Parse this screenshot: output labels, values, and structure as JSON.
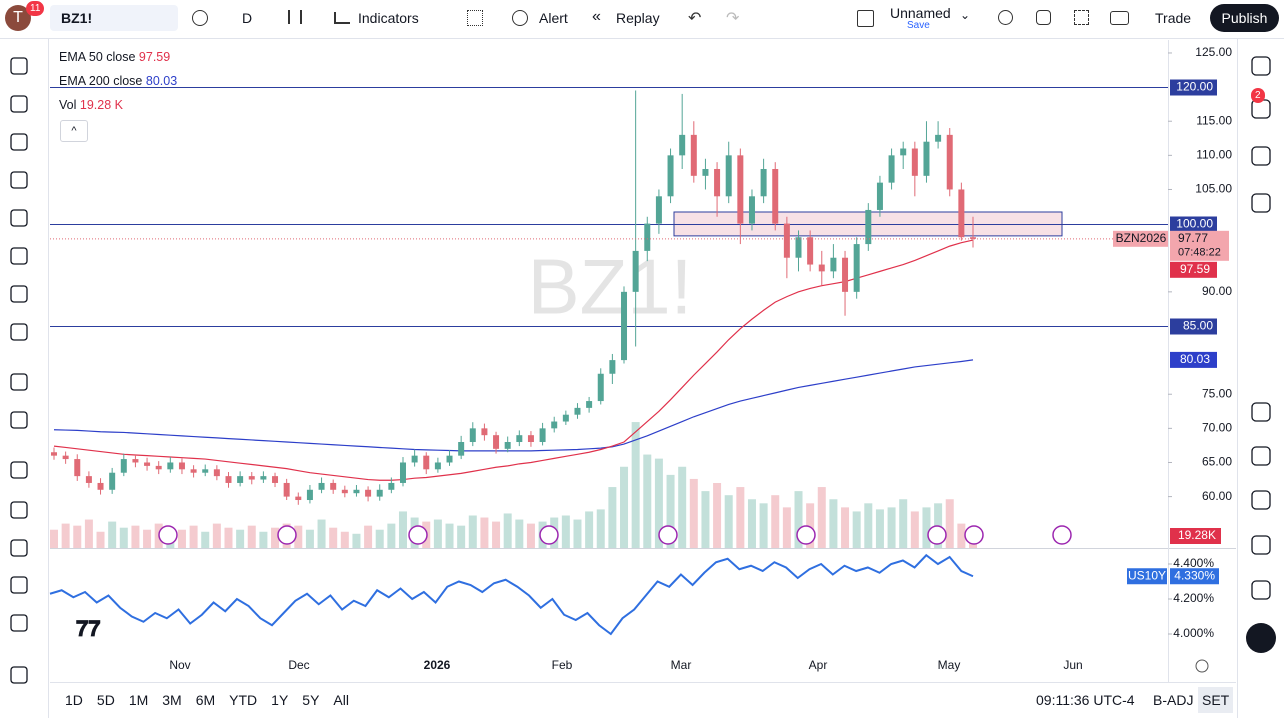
{
  "toolbar": {
    "avatar": "T",
    "avatar_badge": "11",
    "symbol": "BZ1!",
    "interval": "D",
    "indicators": "Indicators",
    "alert": "Alert",
    "replay": "Replay",
    "layout_name": "Unnamed",
    "save": "Save",
    "trade": "Trade",
    "publish": "Publish",
    "alerts_badge": "2"
  },
  "chart_data": {
    "type": "candlestick",
    "watermark": "BZ1!",
    "legend": {
      "ema50": "EMA 50 close",
      "ema200": "EMA 200 close",
      "vol": "Vol",
      "vol_value": "19.28 K"
    },
    "contract": "BZN2026",
    "countdown": "07:48:22",
    "vol_axis_label": "19.28K",
    "ylim": [
      52.47,
      126.9
    ],
    "yticks": [
      {
        "value": 125,
        "label": "125.00"
      },
      {
        "value": 115,
        "label": "115.00"
      },
      {
        "value": 110,
        "label": "110.00"
      },
      {
        "value": 105,
        "label": "105.00"
      },
      {
        "value": 90,
        "label": "90.00"
      },
      {
        "value": 75,
        "label": "75.00"
      },
      {
        "value": 70,
        "label": "70.00"
      },
      {
        "value": 65,
        "label": "65.00"
      },
      {
        "value": 60,
        "label": "60.00"
      }
    ],
    "hlines": [
      {
        "value": 120,
        "label": "120.00"
      },
      {
        "value": 100,
        "label": "100.00"
      },
      {
        "value": 85,
        "label": "85.00"
      }
    ],
    "zone": [
      98.2,
      101.7
    ],
    "months": [
      "Nov",
      "Dec",
      "2026",
      "Feb",
      "Mar",
      "Apr",
      "May",
      "Jun"
    ],
    "up_color": "#53a596",
    "down_color": "#e06a75",
    "ema50_color": "#e0314b",
    "ema200_color": "#2d3fc9",
    "line_color": "#2c3e9e",
    "candles": [
      [
        66.5,
        67.2,
        65.4,
        66
      ],
      [
        66,
        66.6,
        64.8,
        65.5
      ],
      [
        65.5,
        66.2,
        62.3,
        63
      ],
      [
        63,
        63.7,
        61.3,
        62
      ],
      [
        62,
        62.7,
        60.3,
        61
      ],
      [
        61,
        64.2,
        60.4,
        63.5
      ],
      [
        63.5,
        66.3,
        63,
        65.5
      ],
      [
        65.5,
        66.2,
        64.3,
        65
      ],
      [
        65,
        65.7,
        63.8,
        64.5
      ],
      [
        64.5,
        65.2,
        63.3,
        64
      ],
      [
        64,
        65.8,
        63.5,
        65
      ],
      [
        65,
        65.6,
        63.3,
        64
      ],
      [
        64,
        64.6,
        62.8,
        63.5
      ],
      [
        63.5,
        64.7,
        63,
        64
      ],
      [
        64,
        64.6,
        62.4,
        63
      ],
      [
        63,
        63.6,
        61.3,
        62
      ],
      [
        62,
        63.7,
        61.5,
        63
      ],
      [
        63,
        63.6,
        61.8,
        62.5
      ],
      [
        62.5,
        63.7,
        62,
        63
      ],
      [
        63,
        63.5,
        61.4,
        62
      ],
      [
        62,
        62.6,
        59.5,
        60
      ],
      [
        60,
        60.6,
        58.8,
        59.5
      ],
      [
        59.5,
        61.7,
        59,
        61
      ],
      [
        61,
        62.8,
        60.5,
        62
      ],
      [
        62,
        62.5,
        60.4,
        61
      ],
      [
        61,
        61.6,
        59.9,
        60.5
      ],
      [
        60.5,
        61.7,
        60,
        61
      ],
      [
        61,
        61.5,
        59.3,
        60
      ],
      [
        60,
        61.8,
        59.4,
        61
      ],
      [
        61,
        62.8,
        60.5,
        62
      ],
      [
        62,
        65.8,
        61.5,
        65
      ],
      [
        65,
        66.9,
        64.4,
        66
      ],
      [
        66,
        66.5,
        63.3,
        64
      ],
      [
        64,
        65.7,
        63.5,
        65
      ],
      [
        65,
        66.8,
        64.5,
        66
      ],
      [
        66,
        68.9,
        65.5,
        68
      ],
      [
        68,
        70.9,
        67.4,
        70
      ],
      [
        70,
        70.7,
        68.2,
        69
      ],
      [
        69,
        69.5,
        66.3,
        67
      ],
      [
        67,
        68.8,
        66.5,
        68
      ],
      [
        68,
        69.7,
        67.4,
        69
      ],
      [
        69,
        69.6,
        67.3,
        68
      ],
      [
        68,
        70.8,
        67.5,
        70
      ],
      [
        70,
        71.7,
        69.4,
        71
      ],
      [
        71,
        72.6,
        70.5,
        72
      ],
      [
        72,
        73.7,
        71.4,
        73
      ],
      [
        73,
        74.6,
        72.3,
        74
      ],
      [
        74,
        78.8,
        73.5,
        78
      ],
      [
        78,
        80.9,
        76.5,
        80
      ],
      [
        80,
        90.8,
        79.5,
        90
      ],
      [
        90,
        119.5,
        82,
        96
      ],
      [
        96,
        101,
        94.5,
        100
      ],
      [
        100,
        105,
        98.5,
        104
      ],
      [
        104,
        111,
        103,
        110
      ],
      [
        110,
        119,
        108,
        113
      ],
      [
        113,
        115,
        106,
        107
      ],
      [
        107,
        109.5,
        105,
        108
      ],
      [
        108,
        109,
        101,
        104
      ],
      [
        104,
        112,
        103,
        110
      ],
      [
        110,
        111,
        97,
        100
      ],
      [
        100,
        105,
        99,
        104
      ],
      [
        104,
        109.5,
        103,
        108
      ],
      [
        108,
        109,
        99,
        100
      ],
      [
        100,
        101,
        92,
        95
      ],
      [
        95,
        99,
        93,
        98
      ],
      [
        98,
        99,
        93,
        94
      ],
      [
        94,
        96,
        91,
        93
      ],
      [
        93,
        97,
        92,
        95
      ],
      [
        95,
        96,
        86.5,
        90
      ],
      [
        90,
        98,
        89,
        97
      ],
      [
        97,
        103,
        96,
        102
      ],
      [
        102,
        107,
        101,
        106
      ],
      [
        106,
        111,
        105,
        110
      ],
      [
        110,
        112,
        108,
        111
      ],
      [
        111,
        112,
        104,
        107
      ],
      [
        107,
        115,
        106,
        112
      ],
      [
        112,
        115,
        111,
        113
      ],
      [
        113,
        114,
        104,
        105
      ],
      [
        105,
        106,
        97.5,
        98
      ],
      [
        98,
        101,
        96.5,
        97.77
      ]
    ],
    "volume": [
      45,
      60,
      55,
      70,
      40,
      65,
      50,
      55,
      45,
      60,
      50,
      45,
      55,
      40,
      60,
      50,
      45,
      55,
      40,
      50,
      60,
      55,
      45,
      70,
      50,
      40,
      35,
      55,
      45,
      60,
      90,
      75,
      65,
      70,
      60,
      55,
      80,
      75,
      65,
      85,
      70,
      60,
      65,
      75,
      80,
      70,
      90,
      95,
      150,
      200,
      310,
      230,
      220,
      180,
      200,
      170,
      140,
      160,
      130,
      150,
      120,
      110,
      130,
      100,
      140,
      110,
      150,
      120,
      100,
      90,
      110,
      95,
      100,
      120,
      90,
      100,
      110,
      120,
      60,
      19.28
    ],
    "ema50": [
      67.4,
      67.2,
      67,
      66.8,
      66.6,
      66.4,
      66.2,
      66.1,
      66,
      65.9,
      65.8,
      65.7,
      65.6,
      65.5,
      65.3,
      65.1,
      64.9,
      64.7,
      64.5,
      64.3,
      64.1,
      63.8,
      63.5,
      63.3,
      63.1,
      62.9,
      62.7,
      62.5,
      62.4,
      62.4,
      62.5,
      62.7,
      62.8,
      63,
      63.2,
      63.4,
      63.7,
      64,
      64.3,
      64.5,
      64.8,
      65,
      65.3,
      65.6,
      65.9,
      66.2,
      66.5,
      66.9,
      67.4,
      68,
      69.5,
      71,
      72.5,
      74.2,
      76,
      77.8,
      79.5,
      81.2,
      83,
      84.6,
      86,
      87.3,
      88.5,
      89.3,
      90,
      90.5,
      90.9,
      91.2,
      91.5,
      92,
      92.5,
      93,
      93.5,
      94,
      94.6,
      95.3,
      96,
      96.7,
      97.2,
      97.59
    ],
    "ema200": [
      69.8,
      69.75,
      69.7,
      69.6,
      69.5,
      69.45,
      69.4,
      69.3,
      69.2,
      69.1,
      69,
      68.9,
      68.8,
      68.7,
      68.6,
      68.5,
      68.4,
      68.3,
      68.2,
      68.1,
      68,
      67.9,
      67.8,
      67.7,
      67.6,
      67.5,
      67.4,
      67.3,
      67.2,
      67.1,
      67,
      66.9,
      66.85,
      66.8,
      66.75,
      66.7,
      66.7,
      66.7,
      66.7,
      66.7,
      66.7,
      66.7,
      66.75,
      66.8,
      66.85,
      66.9,
      67,
      67.1,
      67.3,
      67.7,
      68.3,
      68.9,
      69.6,
      70.3,
      71,
      71.7,
      72.3,
      72.9,
      73.5,
      74,
      74.4,
      74.8,
      75.2,
      75.6,
      76,
      76.3,
      76.6,
      76.9,
      77.2,
      77.5,
      77.8,
      78.1,
      78.4,
      78.7,
      79,
      79.2,
      79.4,
      79.6,
      79.8,
      80.03
    ],
    "us10y": {
      "name": "US10Y",
      "color": "#2f6fe0",
      "last_label": "4.330%",
      "ylim": [
        3.88,
        4.48
      ],
      "yticks": [
        {
          "value": 4.4,
          "label": "4.400%"
        },
        {
          "value": 4.2,
          "label": "4.200%"
        },
        {
          "value": 4,
          "label": "4.000%"
        }
      ],
      "values": [
        4.23,
        4.25,
        4.21,
        4.24,
        4.18,
        4.22,
        4.15,
        4.1,
        4.07,
        4.12,
        4.09,
        4.14,
        4.06,
        4.11,
        4.18,
        4.13,
        4.2,
        4.16,
        4.09,
        4.05,
        4.12,
        4.19,
        4.23,
        4.17,
        4.22,
        4.14,
        4.19,
        4.16,
        4.25,
        4.21,
        4.26,
        4.2,
        4.24,
        4.18,
        4.27,
        4.3,
        4.28,
        4.24,
        4.29,
        4.31,
        4.27,
        4.22,
        4.15,
        4.2,
        4.11,
        4.08,
        4.12,
        4.05,
        4,
        4.09,
        4.14,
        4.22,
        4.3,
        4.27,
        4.34,
        4.28,
        4.35,
        4.41,
        4.43,
        4.37,
        4.39,
        4.36,
        4.41,
        4.38,
        4.32,
        4.37,
        4.4,
        4.34,
        4.39,
        4.36,
        4.38,
        4.35,
        4.4,
        4.42,
        4.38,
        4.45,
        4.4,
        4.44,
        4.36,
        4.33
      ]
    }
  },
  "bottom_bar": {
    "ranges": [
      "1D",
      "5D",
      "1M",
      "3M",
      "6M",
      "YTD",
      "1Y",
      "5Y",
      "All"
    ],
    "clock": "09:11:36 UTC-4",
    "adj": "B-ADJ",
    "session": "SET"
  }
}
